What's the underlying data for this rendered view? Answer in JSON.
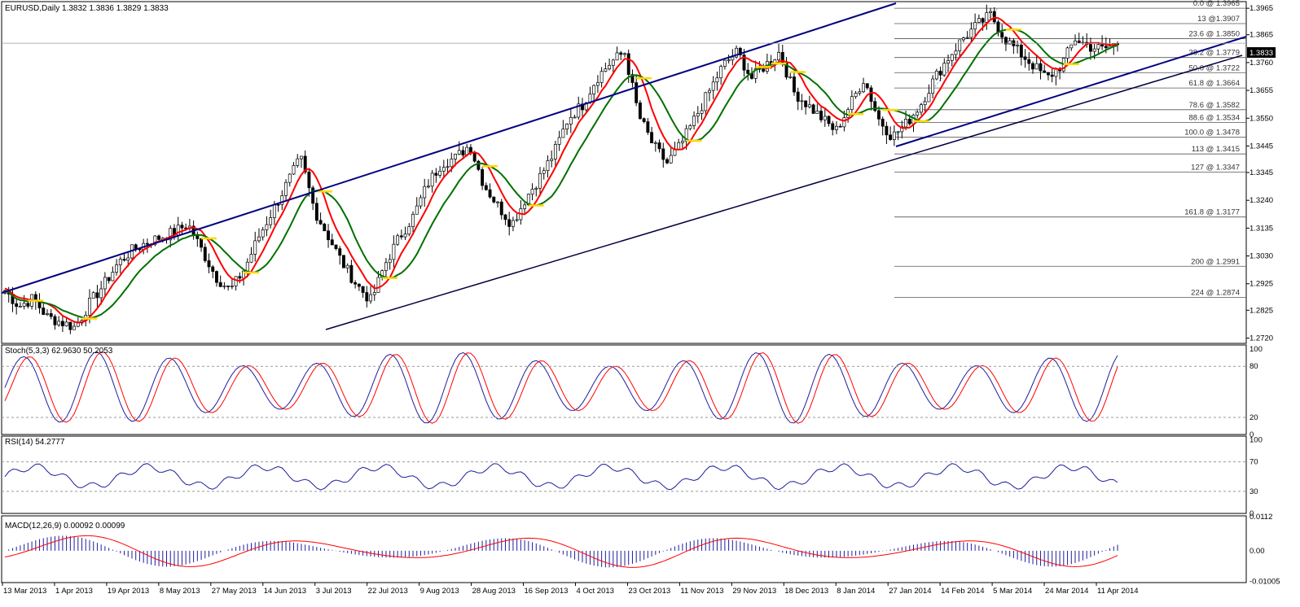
{
  "header": {
    "symbol_line": "EURUSD,Daily  1.3832 1.3836 1.3829 1.3833"
  },
  "price_axis": {
    "ticks": [
      "1.3965",
      "1.3865",
      "1.3760",
      "1.3655",
      "1.3550",
      "1.3445",
      "1.3345",
      "1.3240",
      "1.3135",
      "1.3030",
      "1.2925",
      "1.2825",
      "1.2720"
    ],
    "current_price": "1.3833"
  },
  "fib_levels": [
    {
      "label": "0.0 @ 1.3965",
      "value": 1.3965
    },
    {
      "label": "13 @1.3907",
      "value": 1.3907
    },
    {
      "label": "23.6 @ 1.3850",
      "value": 1.385
    },
    {
      "label": "38.2 @ 1.3779",
      "value": 1.3779
    },
    {
      "label": "50.0 @ 1.3722",
      "value": 1.3722
    },
    {
      "label": "61.8 @ 1.3664",
      "value": 1.3664
    },
    {
      "label": "78.6 @ 1.3582",
      "value": 1.3582
    },
    {
      "label": "88.6 @ 1.3534",
      "value": 1.3534
    },
    {
      "label": "100.0 @ 1.3478",
      "value": 1.3478
    },
    {
      "label": "113 @ 1.3415",
      "value": 1.3415
    },
    {
      "label": "127 @ 1.3347",
      "value": 1.3347
    },
    {
      "label": "161.8 @ 1.3177",
      "value": 1.3177
    },
    {
      "label": "200 @ 1.2991",
      "value": 1.2991
    },
    {
      "label": "224 @ 1.2874",
      "value": 1.2874
    }
  ],
  "stoch": {
    "label": "Stoch(5,3,3) 62.9630 50.2053",
    "ticks": [
      "100",
      "80",
      "20",
      "0"
    ]
  },
  "rsi": {
    "label": "RSI(14) 54.2777",
    "ticks": [
      "100",
      "70",
      "30",
      "0"
    ]
  },
  "macd": {
    "label": "MACD(12,26,9) 0.00092 0.00099",
    "ticks": [
      "0.0112",
      "0.00",
      "-0.01005"
    ]
  },
  "date_axis": [
    "13 Mar 2013",
    "1 Apr 2013",
    "19 Apr 2013",
    "8 May 2013",
    "27 May 2013",
    "14 Jun 2013",
    "3 Jul 2013",
    "22 Jul 2013",
    "9 Aug 2013",
    "28 Aug 2013",
    "16 Sep 2013",
    "4 Oct 2013",
    "23 Oct 2013",
    "11 Nov 2013",
    "29 Nov 2013",
    "18 Dec 2013",
    "8 Jan 2014",
    "27 Jan 2014",
    "14 Feb 2014",
    "5 Mar 2014",
    "24 Mar 2014",
    "11 Apr 2014"
  ],
  "colors": {
    "ma_fast": "#ff0000",
    "ma_slow": "#007000",
    "channel": "#000080",
    "stoch_main": "#1e1e9e",
    "stoch_signal": "#ff0000",
    "macd_hist": "#1e1e9e",
    "macd_signal": "#ff0000"
  },
  "chart_data": {
    "type": "line",
    "series": [
      {
        "values": [
          1.29,
          1.284,
          1.287,
          1.28,
          1.278,
          1.276,
          1.285,
          1.292,
          1.3,
          1.305,
          1.308,
          1.31,
          1.312,
          1.315,
          1.305,
          1.295,
          1.29,
          1.298,
          1.31,
          1.32,
          1.33,
          1.34,
          1.32,
          1.31,
          1.3,
          1.292,
          1.286,
          1.3,
          1.31,
          1.318,
          1.33,
          1.338,
          1.34,
          1.345,
          1.33,
          1.322,
          1.315,
          1.325,
          1.333,
          1.342,
          1.355,
          1.36,
          1.37,
          1.376,
          1.38,
          1.356,
          1.345,
          1.338,
          1.345,
          1.355,
          1.365,
          1.375,
          1.38,
          1.37,
          1.375,
          1.38,
          1.365,
          1.36,
          1.355,
          1.35,
          1.36,
          1.37,
          1.355,
          1.348,
          1.353,
          1.36,
          1.37,
          1.378,
          1.385,
          1.39,
          1.394,
          1.385,
          1.38,
          1.375,
          1.37,
          1.375,
          1.385,
          1.382,
          1.381,
          1.3833
        ]
      }
    ]
  }
}
